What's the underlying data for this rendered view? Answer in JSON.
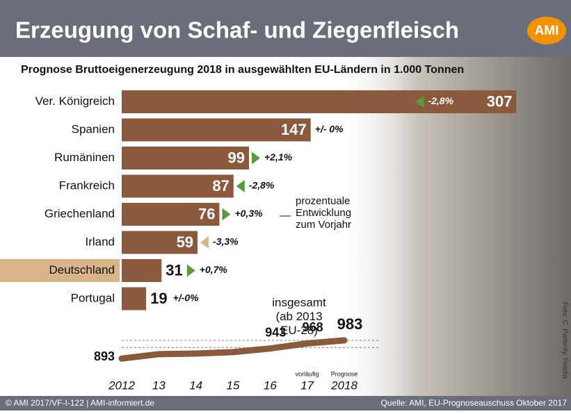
{
  "title": "Erzeugung von Schaf- und Ziegenfleisch",
  "logo": "AMI",
  "footer_left": "© AMI 2017/VF-I-122 | AMI-informiert.de",
  "footer_right": "Quelle: AMI, EU-Prognoseauschuss Oktober 2017",
  "photo_credit": "Foto: C. Partenty, Fotolia",
  "chart_data": [
    {
      "type": "hbar",
      "title": "Prognose Bruttoeigenerzeugung 2018 in ausgewählten EU-Ländern in 1.000 Tonnen",
      "categories": [
        "Ver. Königreich",
        "Spanien",
        "Rumäninen",
        "Frankreich",
        "Griechenland",
        "Irland",
        "Deutschland",
        "Portugal"
      ],
      "values": [
        307,
        147,
        99,
        87,
        76,
        59,
        31,
        19
      ],
      "color": "#8b5a3c",
      "xlim": [
        0,
        310
      ],
      "highlight": "Deutschland",
      "changes": {
        "values": [
          -2.8,
          0,
          2.1,
          -2.8,
          0.3,
          -3.3,
          0.7,
          0
        ],
        "value_labels": [
          "-2,8%",
          "+/- 0%",
          "+2,1%",
          "-2,8%",
          "+0,3%",
          "-3,3%",
          "+0,7%",
          "+/-0%"
        ],
        "color": "#5a9a3c"
      },
      "annotation": "prozentuale Entwicklung zum Vorjahr"
    },
    {
      "type": "line",
      "annotation": "insgesamt (ab 2013 EU-28)",
      "categories": [
        "2012",
        "13",
        "14",
        "15",
        "16",
        "17",
        "2018"
      ],
      "sublabels": [
        null,
        null,
        null,
        null,
        null,
        "vorläufig",
        "Prognose"
      ],
      "values": [
        893,
        915,
        918,
        925,
        943,
        968,
        983
      ],
      "value_labels": [
        "893",
        null,
        null,
        null,
        "943",
        "968",
        "983"
      ],
      "color": "#8b5a3c",
      "ylim": [
        880,
        990
      ]
    }
  ]
}
